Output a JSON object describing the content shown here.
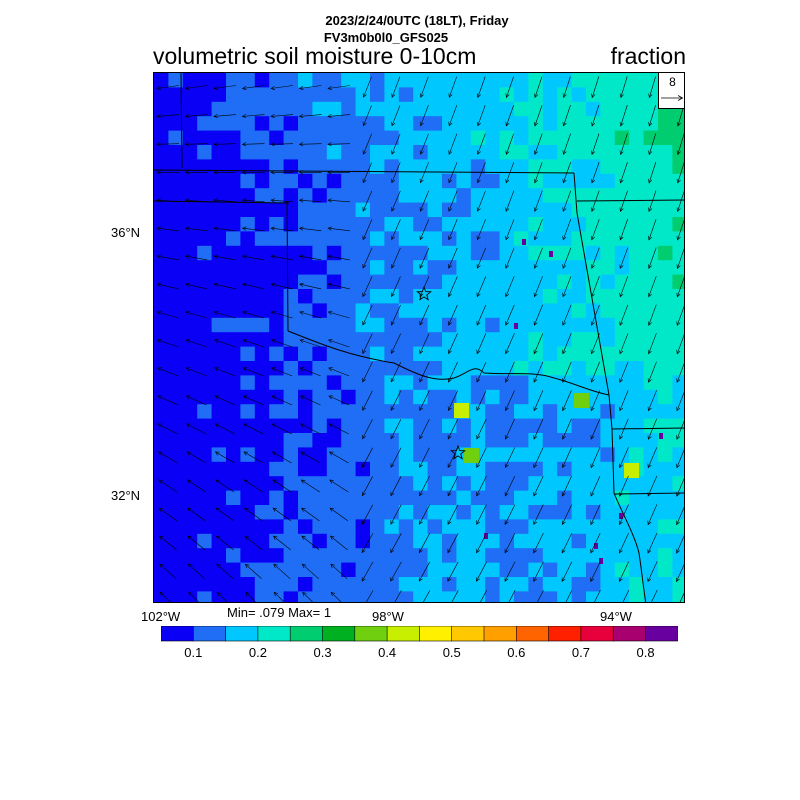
{
  "title": {
    "date_line": "2023/2/24/0UTC (18LT), Friday",
    "model_line": "FV3m0b0l0_GFS025",
    "main": "volumetric soil moisture 0-10cm",
    "units": "fraction"
  },
  "reference_vector": {
    "label": "8"
  },
  "axes": {
    "lat_labels": [
      "36°N",
      "32°N"
    ],
    "lon_labels": [
      "102°W",
      "98°W",
      "94°W"
    ]
  },
  "stats": {
    "text": "Min= .079 Max= 1"
  },
  "colorbar": {
    "colors": [
      "#0a00f5",
      "#1f6ef5",
      "#00c8ff",
      "#00e8c8",
      "#00cc70",
      "#00b020",
      "#70d010",
      "#c8ee00",
      "#fff000",
      "#ffc800",
      "#ffa000",
      "#ff6400",
      "#ff2000",
      "#e8003c",
      "#a8006e",
      "#6800a0"
    ],
    "labels": [
      "0.1",
      "0.2",
      "0.3",
      "0.4",
      "0.5",
      "0.6",
      "0.7",
      "0.8"
    ]
  },
  "markers": {
    "icon": "star-icon",
    "count": 2
  }
}
